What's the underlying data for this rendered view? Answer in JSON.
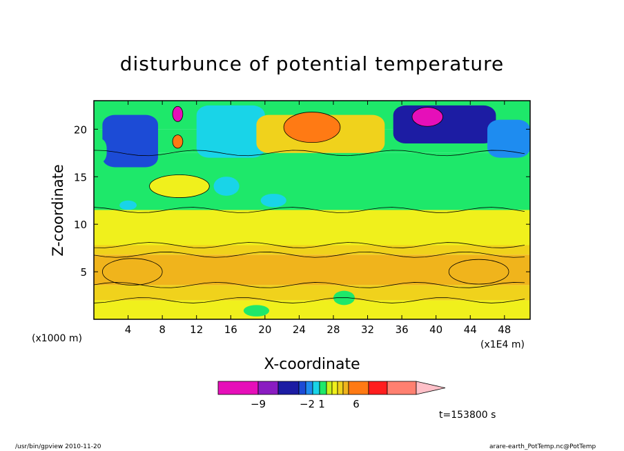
{
  "chart_data": {
    "type": "heatmap",
    "title": "disturbunce of potential temperature",
    "xlabel": "X-coordinate",
    "ylabel": "Z-coordinate",
    "x_unit_label": "(x1000 m)",
    "x_scale_label": "(x1E4 m)",
    "time_label": "t=153800 s",
    "x_ticks": [
      4,
      8,
      12,
      16,
      20,
      24,
      28,
      32,
      36,
      40,
      44,
      48
    ],
    "y_ticks": [
      5,
      10,
      15,
      20
    ],
    "xlim": [
      0,
      51
    ],
    "ylim": [
      0,
      23
    ],
    "colorbar": {
      "tick_labels": [
        {
          "value": -9,
          "label": "−9"
        },
        {
          "value": -2,
          "label": "−2"
        },
        {
          "value": 1,
          "label": "1"
        },
        {
          "value": 6,
          "label": "6"
        }
      ],
      "colors": [
        "#e60fb9",
        "#8a1cc1",
        "#1c1ca3",
        "#1c4bd6",
        "#1e8cf0",
        "#19d4e8",
        "#1ee86a",
        "#c8f01c",
        "#f0f01c",
        "#f0d21c",
        "#f0b41c",
        "#ff7a14",
        "#ff1e1e",
        "#ff8070",
        "#ffc0c8"
      ]
    },
    "blobs": [
      {
        "x": 25.5,
        "y": 20.2,
        "rx": 3.3,
        "ry": 1.6,
        "level": 4
      },
      {
        "x": 39.0,
        "y": 21.3,
        "rx": 1.8,
        "ry": 1.0,
        "level": -8
      },
      {
        "x": 9.8,
        "y": 21.6,
        "rx": 0.6,
        "ry": 0.8,
        "level": -9
      },
      {
        "x": 9.8,
        "y": 18.7,
        "rx": 0.6,
        "ry": 0.7,
        "level": 4
      },
      {
        "x": 4.5,
        "y": 5.0,
        "rx": 3.5,
        "ry": 1.4,
        "level": 3
      },
      {
        "x": 45.0,
        "y": 5.0,
        "rx": 3.5,
        "ry": 1.3,
        "level": 3
      },
      {
        "x": 10.0,
        "y": 14.0,
        "rx": 3.5,
        "ry": 1.2,
        "level": 1
      }
    ]
  },
  "footer": {
    "left": "/usr/bin/gpview   2010-11-20",
    "right": "arare-earth_PotTemp.nc@PotTemp"
  }
}
